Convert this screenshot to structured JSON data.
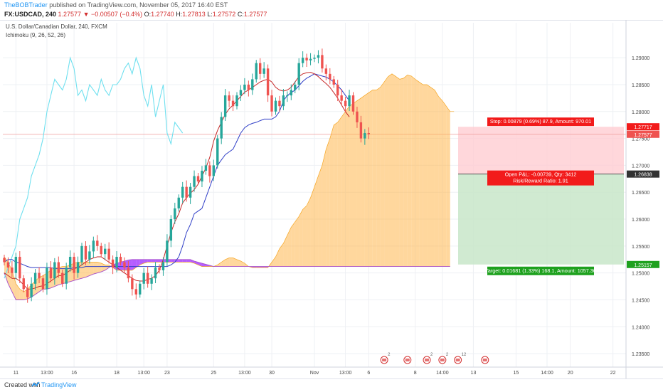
{
  "header": {
    "author": "TheBOBTrader",
    "published": "published on TradingView.com, November 05, 2017 16:40 EST",
    "symbol": "FX:USDCAD, 240",
    "last": "1.27577",
    "change": "−0.00507 (−0.4%)",
    "open_label": "O:",
    "open": "1.27740",
    "high_label": "H:",
    "high": "1.27813",
    "low_label": "L:",
    "low": "1.27572",
    "close_label": "C:",
    "close": "1.27577"
  },
  "legend": {
    "title": "U.S. Dollar/Canadian Dollar, 240, FXCM",
    "indicator": "Ichimoku (9, 26, 52, 26)"
  },
  "footer": {
    "created": "Created with",
    "brand": "TradingView"
  },
  "colors": {
    "up": "#26a69a",
    "down": "#ef5350",
    "tenkan": "#c62828",
    "kijun": "#303fc7",
    "chikou": "#6fe0ef",
    "cloud_bull": "#ffb74d",
    "cloud_bear": "#9c27ff",
    "stop_zone": "#ffcdd2",
    "target_zone": "#c8e6c9",
    "stop_badge": "#f21b1b",
    "target_badge": "#1ea11e"
  },
  "chart_data": {
    "type": "candlestick",
    "y_range": [
      1.2325,
      1.2965
    ],
    "y_ticks": [
      "1.29000",
      "1.28500",
      "1.28000",
      "1.27500",
      "1.27000",
      "1.26500",
      "1.26000",
      "1.25500",
      "1.25000",
      "1.24500",
      "1.24000",
      "1.23500"
    ],
    "x_ticks": [
      {
        "i": 3,
        "label": "11"
      },
      {
        "i": 11,
        "label": "13:00"
      },
      {
        "i": 18,
        "label": "16"
      },
      {
        "i": 29,
        "label": "18"
      },
      {
        "i": 36,
        "label": "13:00"
      },
      {
        "i": 42,
        "label": "23"
      },
      {
        "i": 54,
        "label": "25"
      },
      {
        "i": 62,
        "label": "13:00"
      },
      {
        "i": 69,
        "label": "30"
      },
      {
        "i": 80,
        "label": "Nov"
      },
      {
        "i": 88,
        "label": "13:00"
      },
      {
        "i": 94,
        "label": "6"
      },
      {
        "i": 106,
        "label": "8"
      },
      {
        "i": 113,
        "label": "14:00"
      },
      {
        "i": 121,
        "label": "13"
      },
      {
        "i": 132,
        "label": "15"
      },
      {
        "i": 140,
        "label": "14:00"
      },
      {
        "i": 146,
        "label": "20"
      },
      {
        "i": 157,
        "label": "22"
      }
    ],
    "price_labels": {
      "stop": "1.27717",
      "last": "1.27577",
      "entry": "1.26838",
      "target": "1.25157"
    },
    "position": {
      "type": "short",
      "entry": 1.26838,
      "stop": 1.27717,
      "target": 1.25157,
      "stop_text": "Stop: 0.00879 (0.69%) 87.9, Amount: 970.01",
      "pnl_text": "Open P&L: -0.00739, Qty: 3412",
      "rr_text": "Risk/Reward Ratio: 1.91",
      "target_text": "Target: 0.01681 (1.33%) 168.1, Amount: 1057.36"
    },
    "closes": [
      1.252,
      1.251,
      1.25,
      1.253,
      1.249,
      1.247,
      1.2455,
      1.248,
      1.25,
      1.249,
      1.247,
      1.251,
      1.249,
      1.252,
      1.25,
      1.248,
      1.251,
      1.253,
      1.25,
      1.252,
      1.255,
      1.2525,
      1.254,
      1.256,
      1.255,
      1.2535,
      1.2545,
      1.2525,
      1.251,
      1.253,
      1.252,
      1.251,
      1.249,
      1.247,
      1.246,
      1.248,
      1.25,
      1.248,
      1.249,
      1.251,
      1.2505,
      1.252,
      1.256,
      1.26,
      1.262,
      1.264,
      1.266,
      1.264,
      1.266,
      1.268,
      1.267,
      1.269,
      1.27,
      1.268,
      1.27,
      1.275,
      1.279,
      1.283,
      1.282,
      1.281,
      1.283,
      1.284,
      1.285,
      1.284,
      1.286,
      1.289,
      1.287,
      1.288,
      1.283,
      1.28,
      1.282,
      1.281,
      1.283,
      1.283,
      1.284,
      1.285,
      1.289,
      1.29,
      1.2895,
      1.2898,
      1.29,
      1.2905,
      1.288,
      1.287,
      1.286,
      1.285,
      1.283,
      1.282,
      1.281,
      1.283,
      1.28,
      1.278,
      1.275,
      1.276,
      1.2758
    ],
    "tenkan": [
      1.25,
      1.2495,
      1.249,
      1.249,
      1.2485,
      1.2478,
      1.247,
      1.247,
      1.2472,
      1.2475,
      1.2476,
      1.248,
      1.2485,
      1.249,
      1.2495,
      1.2495,
      1.25,
      1.2505,
      1.2508,
      1.251,
      1.2515,
      1.252,
      1.2525,
      1.2528,
      1.253,
      1.253,
      1.2525,
      1.252,
      1.2515,
      1.251,
      1.2505,
      1.25,
      1.2495,
      1.249,
      1.2486,
      1.2485,
      1.2485,
      1.2488,
      1.249,
      1.2495,
      1.2505,
      1.2525,
      1.255,
      1.2575,
      1.2595,
      1.261,
      1.263,
      1.264,
      1.2648,
      1.2655,
      1.2665,
      1.268,
      1.2695,
      1.2715,
      1.2745,
      1.2765,
      1.278,
      1.2795,
      1.2805,
      1.2812,
      1.282,
      1.2828,
      1.2836,
      1.284,
      1.2845,
      1.285,
      1.2855,
      1.2858,
      1.286,
      1.2855,
      1.2845,
      1.284,
      1.2838,
      1.284,
      1.2845,
      1.2855,
      1.2865,
      1.287,
      1.2872,
      1.2873,
      1.287,
      1.2865,
      1.2858,
      1.2852,
      1.2845,
      1.2835,
      1.2825,
      1.2812,
      1.28,
      1.279
    ],
    "kijun": [
      1.252,
      1.2525,
      1.2525,
      1.252,
      1.2518,
      1.2515,
      1.2512,
      1.251,
      1.251,
      1.251,
      1.251,
      1.251,
      1.251,
      1.2508,
      1.2508,
      1.2508,
      1.2508,
      1.2508,
      1.251,
      1.251,
      1.251,
      1.2512,
      1.2512,
      1.2512,
      1.2512,
      1.2512,
      1.2512,
      1.2512,
      1.2512,
      1.2512,
      1.2512,
      1.2512,
      1.2512,
      1.2512,
      1.2512,
      1.2512,
      1.2512,
      1.2512,
      1.2512,
      1.2512,
      1.2512,
      1.2512,
      1.2512,
      1.2515,
      1.252,
      1.253,
      1.255,
      1.2575,
      1.259,
      1.261,
      1.2615,
      1.262,
      1.264,
      1.266,
      1.268,
      1.27,
      1.271,
      1.272,
      1.2725,
      1.273,
      1.2745,
      1.276,
      1.277,
      1.2775,
      1.2778,
      1.278,
      1.2783,
      1.2786,
      1.2786,
      1.2786,
      1.279,
      1.28,
      1.282,
      1.283,
      1.2835,
      1.284,
      1.2848,
      1.2856,
      1.2862,
      1.2866,
      1.287,
      1.2868,
      1.2866,
      1.2864,
      1.286,
      1.2855,
      1.2848,
      1.284,
      1.283,
      1.282
    ],
    "chikou": [
      1.249,
      1.251,
      1.253,
      1.255,
      1.26,
      1.262,
      1.264,
      1.268,
      1.27,
      1.272,
      1.275,
      1.28,
      1.283,
      1.286,
      1.285,
      1.284,
      1.286,
      1.29,
      1.288,
      1.283,
      1.284,
      1.282,
      1.285,
      1.284,
      1.283,
      1.286,
      1.284,
      1.283,
      1.285,
      1.285,
      1.286,
      1.288,
      1.289,
      1.287,
      1.29,
      1.288,
      1.283,
      1.281,
      1.285,
      1.279,
      1.282,
      1.285,
      1.276,
      1.274,
      1.278,
      1.277,
      1.276
    ],
    "span_a": [
      1.253,
      1.252,
      1.2505,
      1.248,
      1.247,
      1.2465,
      1.247,
      1.2478,
      1.2485,
      1.2492,
      1.2495,
      1.25,
      1.2505,
      1.251,
      1.251,
      1.2512,
      1.2512,
      1.2515,
      1.2518,
      1.252,
      1.252,
      1.252,
      1.252,
      1.252,
      1.252,
      1.2518,
      1.2515,
      1.2515,
      1.251,
      1.2505,
      1.2505,
      1.2505,
      1.2505,
      1.2505,
      1.251,
      1.2515,
      1.2518,
      1.252,
      1.252,
      1.252,
      1.252,
      1.252,
      1.252,
      1.252,
      1.252,
      1.252,
      1.252,
      1.252,
      1.252,
      1.2518,
      1.2515,
      1.2512,
      1.2512,
      1.2512,
      1.2512,
      1.2515,
      1.252,
      1.2525,
      1.2528,
      1.2528,
      1.2525,
      1.2522,
      1.2518,
      1.2512,
      1.251,
      1.251,
      1.251,
      1.251,
      1.251,
      1.252,
      1.253,
      1.2545,
      1.2555,
      1.257,
      1.2585,
      1.2595,
      1.2605,
      1.2618,
      1.2625,
      1.264,
      1.266,
      1.268,
      1.27,
      1.273,
      1.275,
      1.2775,
      1.278,
      1.279,
      1.28,
      1.281,
      1.2815,
      1.282,
      1.2825,
      1.283,
      1.2835,
      1.284,
      1.284,
      1.2845,
      1.2855,
      1.2865,
      1.287,
      1.2865,
      1.286,
      1.2862,
      1.2868,
      1.2866,
      1.286,
      1.2855,
      1.285,
      1.285,
      1.2845,
      1.284,
      1.2828,
      1.282,
      1.281,
      1.28,
      1.28
    ],
    "span_b": [
      1.25,
      1.248,
      1.2465,
      1.245,
      1.245,
      1.245,
      1.2452,
      1.2455,
      1.246,
      1.2465,
      1.247,
      1.247,
      1.2472,
      1.2475,
      1.2478,
      1.248,
      1.2482,
      1.2484,
      1.2486,
      1.2488,
      1.249,
      1.2492,
      1.2495,
      1.2498,
      1.25,
      1.2502,
      1.2505,
      1.251,
      1.2515,
      1.2518,
      1.252,
      1.2522,
      1.2524,
      1.2525,
      1.2525,
      1.2525,
      1.2525,
      1.2525,
      1.2525,
      1.2525,
      1.2525,
      1.2525,
      1.2525,
      1.2525,
      1.2525,
      1.2525,
      1.2525,
      1.2525,
      1.2525,
      1.2522,
      1.252,
      1.2518,
      1.2516,
      1.2514,
      1.2512,
      1.2512,
      1.2512,
      1.2512,
      1.2512,
      1.2512,
      1.2512,
      1.2512,
      1.2512,
      1.2512,
      1.2512,
      1.2512,
      1.2512,
      1.2512,
      1.2512,
      1.2512,
      1.2512,
      1.2512,
      1.2512,
      1.2512,
      1.2512,
      1.2512,
      1.2512,
      1.2512,
      1.2512,
      1.2512,
      1.2512,
      1.2512,
      1.2512,
      1.2512,
      1.2512,
      1.2512,
      1.2512,
      1.2512,
      1.2512,
      1.2512,
      1.2512,
      1.2512,
      1.2512,
      1.2512,
      1.2512,
      1.2512,
      1.2512,
      1.2512,
      1.2512,
      1.2512,
      1.2512,
      1.2512,
      1.2512,
      1.2512,
      1.2512,
      1.2512,
      1.2512,
      1.2512,
      1.2512,
      1.2512,
      1.2512,
      1.2512,
      1.2512,
      1.2512,
      1.2512,
      1.2512
    ],
    "events": [
      {
        "i": 98,
        "badge": "2"
      },
      {
        "i": 104,
        "badge": ""
      },
      {
        "i": 109,
        "badge": "2"
      },
      {
        "i": 113,
        "badge": "2"
      },
      {
        "i": 117,
        "badge": "12"
      },
      {
        "i": 124,
        "badge": ""
      }
    ]
  }
}
